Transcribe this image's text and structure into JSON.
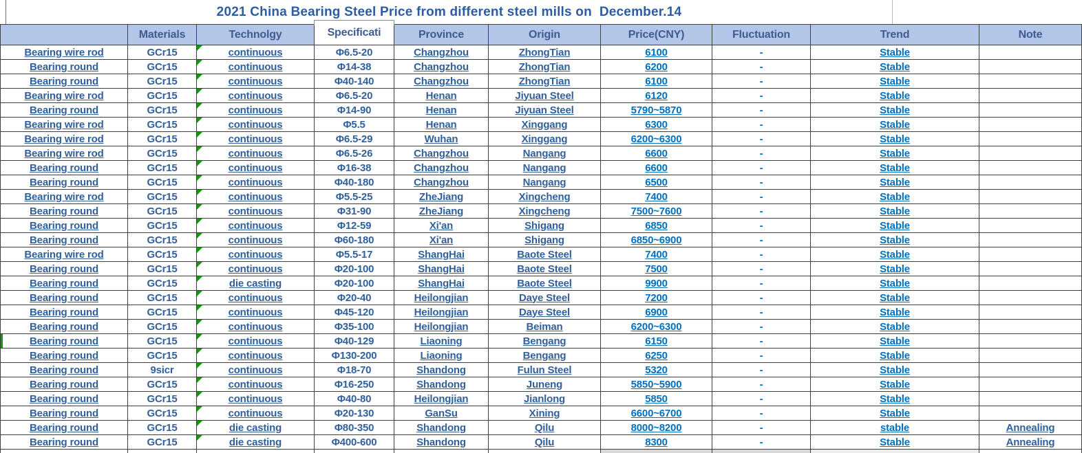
{
  "title": "2021 China Bearing Steel Price from different steel mills on  December.14",
  "colors": {
    "header_bg": "#B4C6E7",
    "header_text": "#3E5C91",
    "title_text": "#2C5DA4",
    "dark_text": "#31609B",
    "bright_text": "#0070C0",
    "grid": "#3F3F3F",
    "flag_green": "#0E9C00",
    "partial_gray": "#D9D9D9"
  },
  "table": {
    "columns": [
      {
        "key": "product",
        "label": ""
      },
      {
        "key": "material",
        "label": "Materials"
      },
      {
        "key": "technology",
        "label": "Technolgy"
      },
      {
        "key": "specification",
        "label": "Specificati"
      },
      {
        "key": "province",
        "label": "Province"
      },
      {
        "key": "origin",
        "label": "Origin"
      },
      {
        "key": "price",
        "label": "Price(CNY)"
      },
      {
        "key": "fluctuation",
        "label": "Fluctuation"
      },
      {
        "key": "trend",
        "label": "Trend"
      },
      {
        "key": "note",
        "label": "Note"
      }
    ],
    "rows": [
      {
        "product": "Bearing wire rod",
        "material": "GCr15",
        "technology": "continuous",
        "specification": "Φ6.5-20",
        "province": "Changzhou",
        "origin": "ZhongTian",
        "price": "6100",
        "fluctuation": "-",
        "trend": "Stable",
        "note": ""
      },
      {
        "product": "Bearing round",
        "material": "GCr15",
        "technology": "continuous",
        "specification": "Φ14-38",
        "province": "Changzhou",
        "origin": "ZhongTian",
        "price": "6200",
        "fluctuation": "-",
        "trend": "Stable",
        "note": ""
      },
      {
        "product": "Bearing round",
        "material": "GCr15",
        "technology": "continuous",
        "specification": "Φ40-140",
        "province": "Changzhou",
        "origin": "ZhongTian",
        "price": "6100",
        "fluctuation": "-",
        "trend": "Stable",
        "note": ""
      },
      {
        "product": "Bearing wire rod",
        "material": "GCr15",
        "technology": "continuous",
        "specification": "Φ6.5-20",
        "province": "Henan",
        "origin": "Jiyuan Steel",
        "price": "6120",
        "fluctuation": "-",
        "trend": "Stable",
        "note": ""
      },
      {
        "product": "Bearing round",
        "material": "GCr15",
        "technology": "continuous",
        "specification": "Φ14-90",
        "province": "Henan",
        "origin": "Jiyuan Steel",
        "price": "5790~5870",
        "fluctuation": "-",
        "trend": "Stable",
        "note": ""
      },
      {
        "product": "Bearing wire rod",
        "material": "GCr15",
        "technology": "continuous",
        "specification": "Φ5.5",
        "province": "Henan",
        "origin": "Xinggang",
        "price": "6300",
        "fluctuation": "-",
        "trend": "Stable",
        "note": ""
      },
      {
        "product": "Bearing wire rod",
        "material": "GCr15",
        "technology": "continuous",
        "specification": "Φ6.5-29",
        "province": "Wuhan",
        "origin": "Xinggang",
        "price": "6200~6300",
        "fluctuation": "-",
        "trend": "Stable",
        "note": ""
      },
      {
        "product": "Bearing wire rod",
        "material": "GCr15",
        "technology": "continuous",
        "specification": "Φ6.5-26",
        "province": "Changzhou",
        "origin": "Nangang",
        "price": "6600",
        "fluctuation": "-",
        "trend": "Stable",
        "note": ""
      },
      {
        "product": "Bearing round",
        "material": "GCr15",
        "technology": "continuous",
        "specification": "Φ16-38",
        "province": "Changzhou",
        "origin": "Nangang",
        "price": "6600",
        "fluctuation": "-",
        "trend": "Stable",
        "note": ""
      },
      {
        "product": "Bearing round",
        "material": "GCr15",
        "technology": "continuous",
        "specification": "Φ40-180",
        "province": "Changzhou",
        "origin": "Nangang",
        "price": "6500",
        "fluctuation": "-",
        "trend": "Stable",
        "note": ""
      },
      {
        "product": "Bearing wire rod",
        "material": "GCr15",
        "technology": "continuous",
        "specification": "Φ5.5-25",
        "province": "ZheJiang",
        "origin": "Xingcheng",
        "price": "7400",
        "fluctuation": "-",
        "trend": "Stable",
        "note": ""
      },
      {
        "product": "Bearing round",
        "material": "GCr15",
        "technology": "continuous",
        "specification": "Φ31-90",
        "province": "ZheJiang",
        "origin": "Xingcheng",
        "price": "7500~7600",
        "fluctuation": "-",
        "trend": "Stable",
        "note": ""
      },
      {
        "product": "Bearing round",
        "material": "GCr15",
        "technology": "continuous",
        "specification": "Φ12-59",
        "province": "Xi'an",
        "origin": "Shigang",
        "price": "6850",
        "fluctuation": "-",
        "trend": "Stable",
        "note": ""
      },
      {
        "product": "Bearing round",
        "material": "GCr15",
        "technology": "continuous",
        "specification": "Φ60-180",
        "province": "Xi'an",
        "origin": "Shigang",
        "price": "6850~6900",
        "fluctuation": "-",
        "trend": "Stable",
        "note": ""
      },
      {
        "product": "Bearing wire rod",
        "material": "GCr15",
        "technology": "continuous",
        "specification": "Φ5.5-17",
        "province": "ShangHai",
        "origin": "Baote Steel",
        "price": "7400",
        "fluctuation": "-",
        "trend": "Stable",
        "note": ""
      },
      {
        "product": "Bearing round",
        "material": "GCr15",
        "technology": "continuous",
        "specification": "Φ20-100",
        "province": "ShangHai",
        "origin": "Baote Steel",
        "price": "7500",
        "fluctuation": "-",
        "trend": "Stable",
        "note": ""
      },
      {
        "product": "Bearing round",
        "material": "GCr15",
        "technology": "die casting",
        "specification": "Φ20-100",
        "province": "ShangHai",
        "origin": "Baote Steel",
        "price": "9900",
        "fluctuation": "-",
        "trend": "Stable",
        "note": ""
      },
      {
        "product": "Bearing round",
        "material": "GCr15",
        "technology": "continuous",
        "specification": "Φ20-40",
        "province": "Heilongjian",
        "origin": "Daye Steel",
        "price": "7200",
        "fluctuation": "-",
        "trend": "Stable",
        "note": ""
      },
      {
        "product": "Bearing round",
        "material": "GCr15",
        "technology": "continuous",
        "specification": "Φ45-120",
        "province": "Heilongjian",
        "origin": "Daye Steel",
        "price": "6900",
        "fluctuation": "-",
        "trend": "Stable",
        "note": ""
      },
      {
        "product": "Bearing round",
        "material": "GCr15",
        "technology": "continuous",
        "specification": "Φ35-100",
        "province": "Heilongjian",
        "origin": "Beiman",
        "price": "6200~6300",
        "fluctuation": "-",
        "trend": "Stable",
        "note": ""
      },
      {
        "product": "Bearing round",
        "material": "GCr15",
        "technology": "continuous",
        "specification": "Φ40-129",
        "province": "Liaoning",
        "origin": "Bengang",
        "price": "6150",
        "fluctuation": "-",
        "trend": "Stable",
        "note": "",
        "left_marker": true
      },
      {
        "product": "Bearing round",
        "material": "GCr15",
        "technology": "continuous",
        "specification": "Φ130-200",
        "province": "Liaoning",
        "origin": "Bengang",
        "price": "6250",
        "fluctuation": "-",
        "trend": "Stable",
        "note": ""
      },
      {
        "product": "Bearing round",
        "material": "9sicr",
        "technology": "continuous",
        "specification": "Φ18-70",
        "province": "Shandong",
        "origin": "Fulun Steel",
        "price": "5320",
        "fluctuation": "-",
        "trend": "Stable",
        "note": ""
      },
      {
        "product": "Bearing round",
        "material": "GCr15",
        "technology": "continuous",
        "specification": "Φ16-250",
        "province": "Shandong",
        "origin": "Juneng",
        "price": "5850~5900",
        "fluctuation": "-",
        "trend": "Stable",
        "note": ""
      },
      {
        "product": "Bearing round",
        "material": "GCr15",
        "technology": "continuous",
        "specification": "Φ40-80",
        "province": "Heilongjian",
        "origin": "Jianlong",
        "price": "5850",
        "fluctuation": "-",
        "trend": "Stable",
        "note": ""
      },
      {
        "product": "Bearing round",
        "material": "GCr15",
        "technology": "continuous",
        "specification": "Φ20-130",
        "province": "GanSu",
        "origin": "Xining",
        "price": "6600~6700",
        "fluctuation": "-",
        "trend": "Stable",
        "note": ""
      },
      {
        "product": "Bearing round",
        "material": "GCr15",
        "technology": "die casting",
        "specification": "Φ80-350",
        "province": "Shandong",
        "origin": "Qilu",
        "price": "8000~8200",
        "fluctuation": "-",
        "trend": "stable",
        "note": "Annealing"
      },
      {
        "product": "Bearing round",
        "material": "GCr15",
        "technology": "die casting",
        "specification": "Φ400-600",
        "province": "Shandong",
        "origin": "Qilu",
        "price": "8300",
        "fluctuation": "-",
        "trend": "Stable",
        "note": "Annealing"
      }
    ]
  }
}
